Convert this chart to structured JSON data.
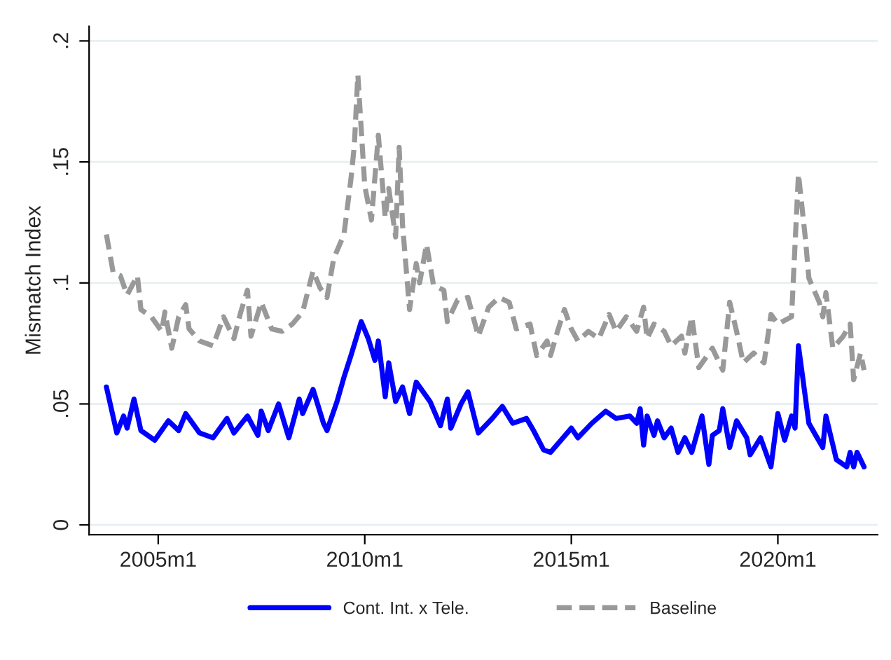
{
  "chart_data": {
    "type": "line",
    "ylabel": "Mismatch Index",
    "xlim": [
      "2003-05",
      "2022-06"
    ],
    "ylim": [
      -0.004,
      0.206
    ],
    "xticks": [
      {
        "value": "2005-01",
        "label": "2005m1"
      },
      {
        "value": "2010-01",
        "label": "2010m1"
      },
      {
        "value": "2015-01",
        "label": "2015m1"
      },
      {
        "value": "2020-01",
        "label": "2020m1"
      }
    ],
    "yticks": [
      {
        "value": 0,
        "label": "0"
      },
      {
        "value": 0.05,
        "label": ".05"
      },
      {
        "value": 0.1,
        "label": ".1"
      },
      {
        "value": 0.15,
        "label": ".15"
      },
      {
        "value": 0.2,
        "label": ".2"
      }
    ],
    "grid": "y",
    "legend": "bottom",
    "marker": "none",
    "series": [
      {
        "name": "Cont. Int. x Tele.",
        "color": "#0000ff",
        "line_style": "solid",
        "x": [
          "2003-10",
          "2004-01",
          "2004-03",
          "2004-04",
          "2004-06",
          "2004-08",
          "2004-12",
          "2005-04",
          "2005-07",
          "2005-09",
          "2006-01",
          "2006-05",
          "2006-09",
          "2006-11",
          "2007-03",
          "2007-06",
          "2007-07",
          "2007-09",
          "2007-12",
          "2008-03",
          "2008-06",
          "2008-07",
          "2008-10",
          "2009-01",
          "2009-02",
          "2009-05",
          "2009-07",
          "2009-09",
          "2009-12",
          "2010-02",
          "2010-04",
          "2010-05",
          "2010-07",
          "2010-08",
          "2010-10",
          "2010-12",
          "2011-02",
          "2011-04",
          "2011-08",
          "2011-11",
          "2012-01",
          "2012-02",
          "2012-05",
          "2012-07",
          "2012-10",
          "2013-02",
          "2013-05",
          "2013-08",
          "2013-12",
          "2014-02",
          "2014-05",
          "2014-07",
          "2014-10",
          "2015-01",
          "2015-03",
          "2015-07",
          "2015-11",
          "2016-02",
          "2016-06",
          "2016-08",
          "2016-09",
          "2016-10",
          "2016-11",
          "2017-01",
          "2017-02",
          "2017-04",
          "2017-06",
          "2017-08",
          "2017-10",
          "2017-12",
          "2018-03",
          "2018-05",
          "2018-06",
          "2018-08",
          "2018-09",
          "2018-11",
          "2019-01",
          "2019-04",
          "2019-05",
          "2019-08",
          "2019-11",
          "2020-01",
          "2020-03",
          "2020-05",
          "2020-06",
          "2020-07",
          "2020-10",
          "2020-12",
          "2021-02",
          "2021-03",
          "2021-06",
          "2021-09",
          "2021-10",
          "2021-11",
          "2021-12",
          "2022-02"
        ],
        "values": [
          0.057,
          0.038,
          0.045,
          0.04,
          0.052,
          0.039,
          0.035,
          0.043,
          0.039,
          0.046,
          0.038,
          0.036,
          0.044,
          0.038,
          0.045,
          0.037,
          0.047,
          0.039,
          0.05,
          0.036,
          0.052,
          0.046,
          0.056,
          0.042,
          0.039,
          0.051,
          0.061,
          0.07,
          0.084,
          0.077,
          0.068,
          0.076,
          0.053,
          0.067,
          0.051,
          0.057,
          0.046,
          0.059,
          0.051,
          0.041,
          0.052,
          0.04,
          0.05,
          0.055,
          0.038,
          0.044,
          0.049,
          0.042,
          0.044,
          0.039,
          0.031,
          0.03,
          0.035,
          0.04,
          0.036,
          0.042,
          0.047,
          0.044,
          0.045,
          0.042,
          0.048,
          0.033,
          0.045,
          0.037,
          0.043,
          0.036,
          0.04,
          0.03,
          0.036,
          0.03,
          0.045,
          0.025,
          0.037,
          0.039,
          0.048,
          0.032,
          0.043,
          0.036,
          0.029,
          0.036,
          0.024,
          0.046,
          0.035,
          0.045,
          0.04,
          0.074,
          0.042,
          0.037,
          0.032,
          0.045,
          0.027,
          0.024,
          0.03,
          0.024,
          0.03,
          0.024
        ]
      },
      {
        "name": "Baseline",
        "color": "#999999",
        "line_style": "dashed",
        "x": [
          "2003-10",
          "2003-12",
          "2004-02",
          "2004-04",
          "2004-07",
          "2004-08",
          "2004-11",
          "2005-02",
          "2005-03",
          "2005-05",
          "2005-07",
          "2005-09",
          "2005-10",
          "2006-01",
          "2006-05",
          "2006-08",
          "2006-11",
          "2007-01",
          "2007-03",
          "2007-04",
          "2007-07",
          "2007-10",
          "2008-01",
          "2008-04",
          "2008-07",
          "2008-10",
          "2008-12",
          "2009-02",
          "2009-04",
          "2009-07",
          "2009-09",
          "2009-10",
          "2009-11",
          "2010-01",
          "2010-03",
          "2010-05",
          "2010-07",
          "2010-08",
          "2010-10",
          "2010-11",
          "2010-12",
          "2011-02",
          "2011-04",
          "2011-05",
          "2011-07",
          "2011-09",
          "2011-12",
          "2012-01",
          "2012-04",
          "2012-07",
          "2012-10",
          "2013-01",
          "2013-04",
          "2013-07",
          "2013-09",
          "2014-01",
          "2014-03",
          "2014-06",
          "2014-07",
          "2014-09",
          "2014-11",
          "2015-01",
          "2015-03",
          "2015-06",
          "2015-09",
          "2015-12",
          "2016-02",
          "2016-05",
          "2016-08",
          "2016-10",
          "2016-11",
          "2017-01",
          "2017-04",
          "2017-06",
          "2017-09",
          "2017-10",
          "2017-12",
          "2018-02",
          "2018-06",
          "2018-09",
          "2018-11",
          "2019-01",
          "2019-03",
          "2019-06",
          "2019-09",
          "2019-11",
          "2020-01",
          "2020-05",
          "2020-07",
          "2020-09",
          "2020-10",
          "2021-01",
          "2021-02",
          "2021-03",
          "2021-05",
          "2021-08",
          "2021-10",
          "2021-11",
          "2022-01",
          "2022-02"
        ],
        "values": [
          0.12,
          0.104,
          0.103,
          0.095,
          0.103,
          0.089,
          0.086,
          0.08,
          0.088,
          0.073,
          0.086,
          0.091,
          0.081,
          0.076,
          0.074,
          0.086,
          0.077,
          0.088,
          0.097,
          0.078,
          0.092,
          0.081,
          0.08,
          0.083,
          0.088,
          0.105,
          0.098,
          0.094,
          0.11,
          0.12,
          0.143,
          0.157,
          0.186,
          0.14,
          0.126,
          0.161,
          0.127,
          0.139,
          0.119,
          0.156,
          0.124,
          0.089,
          0.108,
          0.1,
          0.116,
          0.099,
          0.097,
          0.084,
          0.093,
          0.094,
          0.078,
          0.09,
          0.094,
          0.092,
          0.081,
          0.083,
          0.07,
          0.076,
          0.07,
          0.08,
          0.089,
          0.081,
          0.076,
          0.08,
          0.077,
          0.087,
          0.08,
          0.086,
          0.08,
          0.09,
          0.077,
          0.083,
          0.08,
          0.074,
          0.078,
          0.071,
          0.086,
          0.065,
          0.073,
          0.064,
          0.092,
          0.08,
          0.067,
          0.071,
          0.067,
          0.087,
          0.083,
          0.086,
          0.145,
          0.118,
          0.102,
          0.092,
          0.086,
          0.096,
          0.073,
          0.078,
          0.083,
          0.06,
          0.071,
          0.064
        ]
      }
    ]
  }
}
